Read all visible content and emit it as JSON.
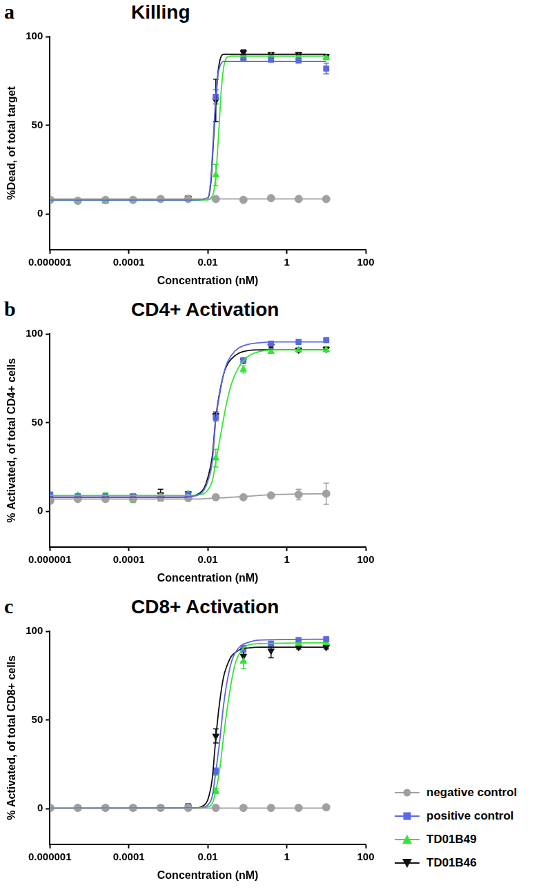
{
  "chart_data": [
    {
      "panel": "a",
      "type": "scatter",
      "title": "Killing",
      "x_label": "Concentration (nM)",
      "y_label": "%Dead, of total target",
      "log": "x",
      "grid": false,
      "xlim": [
        1e-06,
        100
      ],
      "xticks": [
        1e-06,
        0.0001,
        0.01,
        1,
        100
      ],
      "ylim": [
        -20,
        100
      ],
      "yticks": [
        0,
        50,
        100
      ],
      "x": [
        1.024e-06,
        5.12e-06,
        2.56e-05,
        0.000128,
        0.00064,
        0.0032,
        0.016,
        0.08,
        0.4,
        2,
        10
      ],
      "fit_x": [
        1e-06,
        0.005,
        0.01,
        0.012,
        0.014,
        0.016,
        0.018,
        0.02,
        0.022,
        0.025,
        0.03,
        0.04,
        10
      ],
      "series": [
        {
          "name": "negative control",
          "color": "#a0a0a0",
          "marker": "circle",
          "values": [
            8,
            7.5,
            8,
            8,
            8.5,
            8.5,
            8.5,
            8,
            9,
            8.5,
            8.5
          ],
          "errors": [
            0.5,
            0.5,
            0.5,
            0.5,
            0.5,
            0.5,
            0.5,
            0.5,
            0.8,
            0.5,
            0.5
          ],
          "fit": [
            8.5,
            8.5,
            8.5,
            8.5,
            8.5,
            8.5,
            8.5,
            8.5,
            8.5,
            8.5,
            8.5,
            8.5,
            8.5
          ]
        },
        {
          "name": "positive control",
          "color": "#5b67e6",
          "marker": "square",
          "values": [
            8,
            7.5,
            7.5,
            8,
            8.5,
            9,
            66,
            88,
            87,
            86.5,
            82
          ],
          "errors": [
            0.5,
            0.5,
            0.5,
            0.5,
            0.5,
            1,
            4,
            1,
            1,
            1,
            3
          ],
          "fit": [
            8,
            8,
            9,
            20,
            45,
            66,
            78,
            83,
            85,
            86,
            86,
            86,
            86
          ]
        },
        {
          "name": "TD01B49",
          "color": "#33e633",
          "marker": "triangle",
          "values": [
            8,
            7.5,
            7.5,
            8,
            8.5,
            8.5,
            22,
            88,
            89,
            88.5,
            88
          ],
          "errors": [
            0.5,
            0.5,
            0.5,
            0.5,
            0.5,
            0.5,
            6,
            1,
            1,
            1,
            1
          ],
          "fit": [
            8,
            8,
            8,
            9,
            12,
            22,
            38,
            55,
            70,
            82,
            88,
            89,
            89
          ]
        },
        {
          "name": "TD01B46",
          "color": "#111111",
          "marker": "triangle-down",
          "values": [
            8,
            7.5,
            8,
            8,
            8.5,
            9,
            64,
            91,
            90,
            90,
            89
          ],
          "errors": [
            0.5,
            0.5,
            0.5,
            0.5,
            0.5,
            0.5,
            12,
            1.5,
            1,
            1,
            1
          ],
          "fit": [
            8,
            8,
            9,
            18,
            42,
            63,
            79,
            86,
            89,
            90,
            90,
            90,
            90
          ]
        }
      ]
    },
    {
      "panel": "b",
      "type": "scatter",
      "title": "CD4+ Activation",
      "x_label": "Concentration (nM)",
      "y_label": "% Activated, of total CD4+ cells",
      "log": "x",
      "grid": false,
      "xlim": [
        1e-06,
        100
      ],
      "xticks": [
        1e-06,
        0.0001,
        0.01,
        1,
        100
      ],
      "ylim": [
        -20,
        100
      ],
      "yticks": [
        0,
        50,
        100
      ],
      "x": [
        1.024e-06,
        5.12e-06,
        2.56e-05,
        0.000128,
        0.00064,
        0.0032,
        0.016,
        0.08,
        0.4,
        2,
        10
      ],
      "fit_x": [
        1e-06,
        0.002,
        0.004,
        0.006,
        0.008,
        0.01,
        0.013,
        0.016,
        0.02,
        0.025,
        0.03,
        0.04,
        0.06,
        0.1,
        0.2,
        0.5,
        10
      ],
      "series": [
        {
          "name": "negative control",
          "color": "#a0a0a0",
          "marker": "circle",
          "values": [
            6,
            7,
            7,
            7,
            8,
            7.5,
            8,
            8,
            9,
            9.5,
            10
          ],
          "errors": [
            0.5,
            0.5,
            1,
            1,
            2,
            1,
            0.5,
            0.5,
            1,
            3,
            6
          ],
          "fit": [
            7,
            7,
            7,
            7,
            7.2,
            7.3,
            7.4,
            7.5,
            7.6,
            7.7,
            7.8,
            8,
            8.2,
            8.5,
            9,
            9.5,
            10
          ]
        },
        {
          "name": "positive control",
          "color": "#5b67e6",
          "marker": "square",
          "values": [
            9.5,
            8.5,
            8.5,
            8.5,
            8,
            9.5,
            53,
            85,
            94.5,
            95.5,
            96.5
          ],
          "errors": [
            1,
            1,
            1,
            1,
            2,
            1,
            2,
            1.5,
            1,
            1,
            1
          ],
          "fit": [
            8,
            8,
            8.5,
            9.5,
            12,
            17,
            28,
            52,
            66,
            77,
            83,
            88,
            92,
            94,
            95,
            95.5,
            95.5
          ]
        },
        {
          "name": "TD01B49",
          "color": "#33e633",
          "marker": "triangle",
          "values": [
            8.5,
            9,
            8.5,
            7,
            8,
            10,
            30,
            80,
            90,
            91,
            91
          ],
          "errors": [
            0.5,
            1,
            2,
            2,
            1,
            1,
            5,
            2,
            1,
            1,
            1
          ],
          "fit": [
            9,
            9,
            9,
            9.5,
            10,
            12,
            17,
            28,
            40,
            52,
            61,
            72,
            81,
            87,
            90,
            91,
            91
          ]
        },
        {
          "name": "TD01B46",
          "color": "#111111",
          "marker": "triangle-down",
          "values": [
            7,
            7.5,
            7.5,
            8.5,
            9.5,
            10,
            54,
            85,
            93,
            91,
            91.5
          ],
          "errors": [
            0.5,
            0.5,
            1,
            1,
            3,
            1,
            2,
            1.5,
            1,
            1,
            1
          ],
          "fit": [
            8,
            8,
            8.5,
            10,
            13,
            19,
            31,
            53,
            67,
            77,
            82,
            86,
            89,
            90.5,
            91,
            91,
            91
          ]
        }
      ]
    },
    {
      "panel": "c",
      "type": "scatter",
      "title": "CD8+ Activation",
      "x_label": "Concentration (nM)",
      "y_label": "% Activated, of total CD8+ cells",
      "log": "x",
      "grid": false,
      "legend": "right",
      "xlim": [
        1e-06,
        100
      ],
      "xticks": [
        1e-06,
        0.0001,
        0.01,
        1,
        100
      ],
      "ylim": [
        -20,
        100
      ],
      "yticks": [
        0,
        50,
        100
      ],
      "x": [
        1.024e-06,
        5.12e-06,
        2.56e-05,
        0.000128,
        0.00064,
        0.0032,
        0.016,
        0.08,
        0.4,
        2,
        10
      ],
      "fit_x": [
        1e-06,
        0.005,
        0.008,
        0.01,
        0.013,
        0.016,
        0.02,
        0.025,
        0.03,
        0.04,
        0.05,
        0.07,
        0.1,
        0.2,
        10
      ],
      "series": [
        {
          "name": "negative control",
          "color": "#a0a0a0",
          "marker": "circle",
          "values": [
            0.5,
            0.5,
            0.5,
            0.5,
            0.5,
            0.5,
            0.5,
            0.5,
            0.5,
            0.5,
            0.8
          ],
          "errors": [
            0.3,
            0.3,
            0.3,
            0.3,
            0.3,
            0.3,
            0.3,
            0.3,
            0.3,
            0.5,
            0.5
          ],
          "fit": [
            0.4,
            0.4,
            0.4,
            0.4,
            0.4,
            0.4,
            0.4,
            0.4,
            0.4,
            0.4,
            0.4,
            0.4,
            0.4,
            0.4,
            0.4
          ]
        },
        {
          "name": "positive control",
          "color": "#5b67e6",
          "marker": "square",
          "values": [
            0.5,
            0.5,
            0.5,
            0.5,
            0.5,
            1.5,
            21,
            90,
            93,
            95,
            95.5
          ],
          "errors": [
            0.3,
            0.3,
            0.3,
            0.3,
            0.3,
            0.5,
            2,
            2,
            1,
            1,
            1
          ],
          "fit": [
            0.3,
            0.3,
            1,
            2,
            7,
            21,
            38,
            58,
            70,
            83,
            88,
            92,
            93.5,
            95,
            95.5
          ]
        },
        {
          "name": "TD01B49",
          "color": "#33e633",
          "marker": "triangle",
          "values": [
            0.3,
            0.3,
            0.3,
            0.3,
            0.3,
            0.5,
            10,
            83,
            92,
            93,
            93.5
          ],
          "errors": [
            0.3,
            0.3,
            0.3,
            0.3,
            0.3,
            0.3,
            1.5,
            4,
            1,
            1,
            1
          ],
          "fit": [
            0.3,
            0.3,
            0.5,
            1,
            3,
            10,
            22,
            40,
            54,
            72,
            82,
            89,
            92,
            93,
            93.5
          ]
        },
        {
          "name": "TD01B46",
          "color": "#111111",
          "marker": "triangle-down",
          "values": [
            0.5,
            0.5,
            0.5,
            0.5,
            0.7,
            1,
            41,
            86,
            89,
            91,
            91
          ],
          "errors": [
            0.3,
            0.3,
            0.3,
            0.3,
            0.3,
            0.3,
            4,
            3,
            4,
            1,
            1
          ],
          "fit": [
            0.3,
            0.5,
            2,
            5,
            17,
            40,
            60,
            74,
            80,
            86,
            88,
            90,
            90.5,
            91,
            91
          ]
        }
      ]
    }
  ]
}
